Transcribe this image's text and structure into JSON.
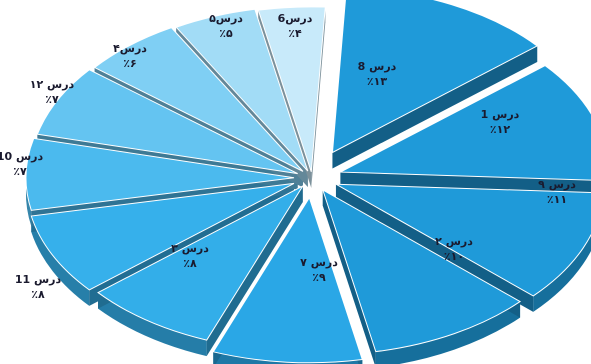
{
  "chart_data": {
    "type": "pie",
    "style": "3d-exploded",
    "slices": [
      {
        "name": "درس 8",
        "pct_label": "٪۱۳",
        "value": 13,
        "color": "#1f9ad9"
      },
      {
        "name": "درس 1",
        "pct_label": "٪۱۲",
        "value": 12,
        "color": "#1f9ad9"
      },
      {
        "name": "درس ۹",
        "pct_label": "٪۱۱",
        "value": 11,
        "color": "#1f9ad9"
      },
      {
        "name": "درس ۲",
        "pct_label": "٪۱۰",
        "value": 10,
        "color": "#1f9ad9"
      },
      {
        "name": "درس ۷",
        "pct_label": "٪۹",
        "value": 9,
        "color": "#2aa7e6"
      },
      {
        "name": "درس ۳",
        "pct_label": "٪۸",
        "value": 8,
        "color": "#33aee9"
      },
      {
        "name": "درس 11",
        "pct_label": "٪۸",
        "value": 8,
        "color": "#36b0eb"
      },
      {
        "name": "درس 10",
        "pct_label": "٪۷",
        "value": 7,
        "color": "#4bbaee"
      },
      {
        "name": "درس ۱۲",
        "pct_label": "٪۷",
        "value": 7,
        "color": "#64c4f1"
      },
      {
        "name": "درس۴",
        "pct_label": "٪۶",
        "value": 6,
        "color": "#7fcff4"
      },
      {
        "name": "درس۵",
        "pct_label": "٪۵",
        "value": 5,
        "color": "#a2dcf6"
      },
      {
        "name": "درس6",
        "pct_label": "٪۴",
        "value": 4,
        "color": "#c8eafa"
      }
    ]
  }
}
